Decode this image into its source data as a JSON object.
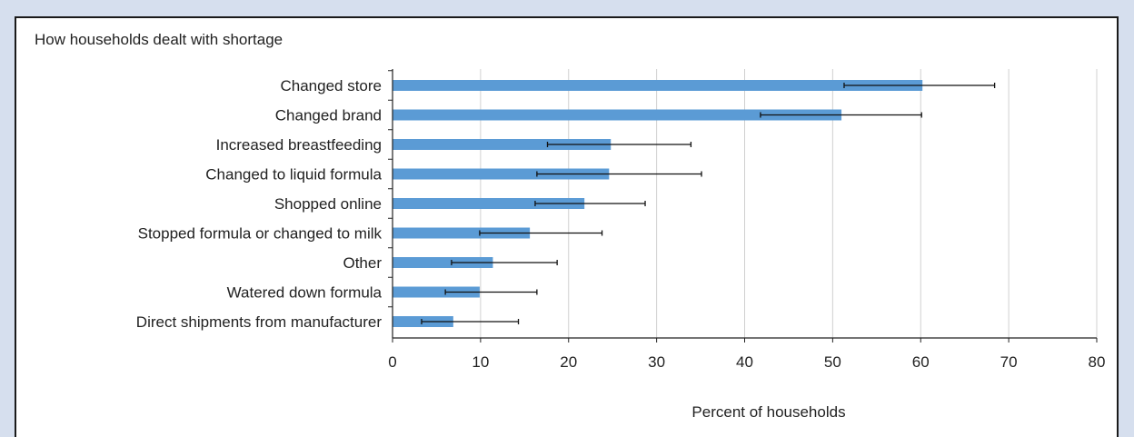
{
  "chart_data": {
    "type": "bar",
    "orientation": "horizontal",
    "title": "How households dealt with shortage",
    "xlabel": "Percent of households",
    "ylabel": "",
    "xlim": [
      0,
      80
    ],
    "xticks": [
      0,
      10,
      20,
      30,
      40,
      50,
      60,
      70,
      80
    ],
    "grid": true,
    "bar_color": "#5b9bd5",
    "categories": [
      "Changed store",
      "Changed brand",
      "Increased breastfeeding",
      "Changed to liquid formula",
      "Shopped online",
      "Stopped formula or changed to milk",
      "Other",
      "Watered down formula",
      "Direct shipments from manufacturer"
    ],
    "values": [
      60.2,
      51.0,
      24.8,
      24.6,
      21.8,
      15.6,
      11.4,
      9.9,
      6.9
    ],
    "error_low": [
      51.3,
      41.8,
      17.6,
      16.4,
      16.2,
      9.9,
      6.7,
      6.0,
      3.3
    ],
    "error_high": [
      68.4,
      60.1,
      33.9,
      35.1,
      28.7,
      23.8,
      18.7,
      16.4,
      14.3
    ]
  }
}
